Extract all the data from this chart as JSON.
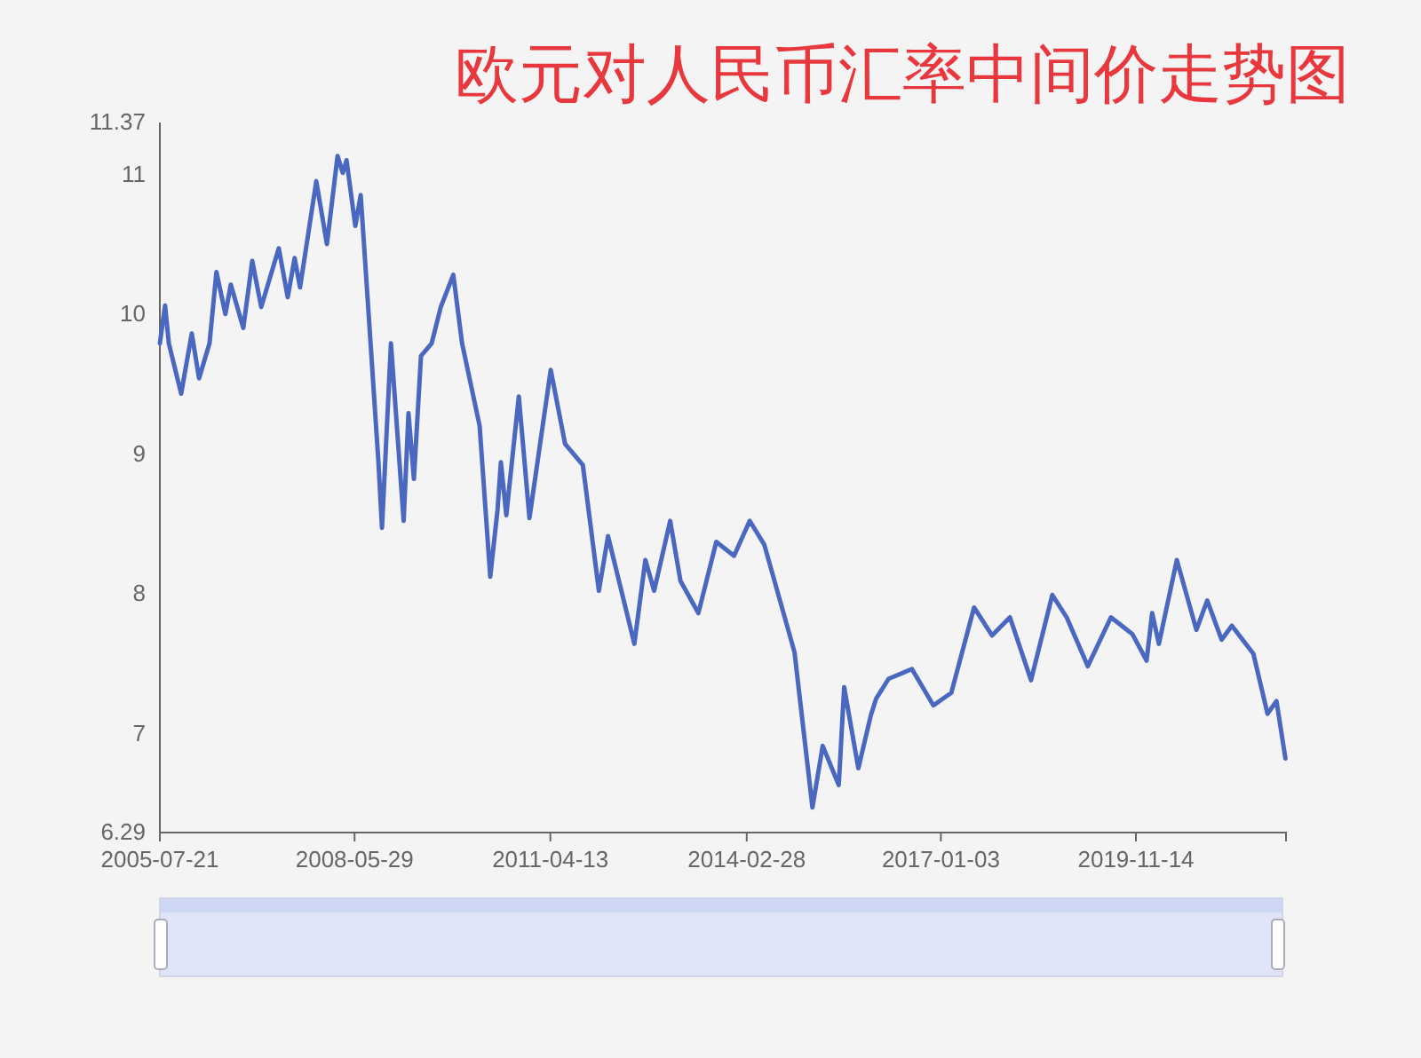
{
  "chart_data": {
    "type": "line",
    "title": "欧元对人民币汇率中间价走势图",
    "x": [
      "2005-07-21",
      "2005-08-18",
      "2005-09-07",
      "2005-11-12",
      "2006-01-08",
      "2006-02-16",
      "2006-04-13",
      "2006-05-20",
      "2006-07-07",
      "2006-08-05",
      "2006-10-11",
      "2006-11-28",
      "2007-01-15",
      "2007-04-19",
      "2007-06-06",
      "2007-07-13",
      "2007-08-11",
      "2007-11-06",
      "2008-01-02",
      "2008-02-28",
      "2008-03-27",
      "2008-04-16",
      "2008-06-02",
      "2008-07-01",
      "2008-08-08",
      "2008-10-04",
      "2008-10-23",
      "2008-12-10",
      "2009-02-16",
      "2009-03-14",
      "2009-04-12",
      "2009-05-20",
      "2009-07-16",
      "2009-09-03",
      "2009-11-09",
      "2009-12-26",
      "2010-03-30",
      "2010-05-26",
      "2010-07-04",
      "2010-07-22",
      "2010-08-20",
      "2010-10-26",
      "2010-12-22",
      "2011-04-15",
      "2011-07-01",
      "2011-10-04",
      "2011-12-29",
      "2012-02-16",
      "2012-07-06",
      "2012-09-03",
      "2012-10-20",
      "2013-01-14",
      "2013-03-10",
      "2013-06-14",
      "2013-09-18",
      "2013-12-22",
      "2014-03-16",
      "2014-06-02",
      "2014-11-11",
      "2015-02-15",
      "2015-04-11",
      "2015-07-06",
      "2015-08-04",
      "2015-10-19",
      "2015-12-25",
      "2016-01-23",
      "2016-03-29",
      "2016-08-01",
      "2016-11-24",
      "2017-02-28",
      "2017-06-30",
      "2017-10-04",
      "2018-01-08",
      "2018-05-01",
      "2018-08-23",
      "2018-11-08",
      "2019-03-01",
      "2019-07-03",
      "2019-10-26",
      "2020-01-10",
      "2020-02-09",
      "2020-03-16",
      "2020-06-20",
      "2020-10-03",
      "2020-11-30",
      "2021-02-15",
      "2021-04-11",
      "2021-08-04",
      "2021-10-19",
      "2021-12-06",
      "2022-01-23"
    ],
    "series": [
      {
        "color": "#4a68c0",
        "values": [
          9.79,
          10.06,
          9.79,
          9.43,
          9.86,
          9.54,
          9.79,
          10.3,
          10.0,
          10.21,
          9.9,
          10.38,
          10.05,
          10.47,
          10.12,
          10.4,
          10.19,
          10.95,
          10.5,
          11.13,
          11.01,
          11.1,
          10.63,
          10.85,
          10.09,
          8.94,
          8.47,
          9.79,
          8.52,
          9.29,
          8.82,
          9.7,
          9.79,
          10.05,
          10.28,
          9.79,
          9.2,
          8.12,
          8.6,
          8.94,
          8.56,
          9.41,
          8.54,
          9.6,
          9.07,
          8.92,
          8.02,
          8.41,
          7.64,
          8.24,
          8.02,
          8.52,
          8.09,
          7.86,
          8.37,
          8.27,
          8.52,
          8.35,
          7.58,
          6.47,
          6.91,
          6.63,
          7.33,
          6.75,
          7.13,
          7.25,
          7.39,
          7.46,
          7.2,
          7.29,
          7.9,
          7.7,
          7.83,
          7.38,
          7.99,
          7.83,
          7.48,
          7.83,
          7.71,
          7.52,
          7.86,
          7.64,
          8.24,
          7.74,
          7.95,
          7.67,
          7.77,
          7.57,
          7.14,
          7.23,
          6.82
        ]
      }
    ],
    "xlim": [
      "2005-07-21",
      "2022-01-26"
    ],
    "xticks": [
      {
        "value": "2005-07-21",
        "label": "2005-07-21"
      },
      {
        "value": "2008-05-29",
        "label": "2008-05-29"
      },
      {
        "value": "2011-04-13",
        "label": "2011-04-13"
      },
      {
        "value": "2014-02-28",
        "label": "2014-02-28"
      },
      {
        "value": "2017-01-03",
        "label": "2017-01-03"
      },
      {
        "value": "2019-11-14",
        "label": "2019-11-14"
      },
      {
        "value": "2022-01-26",
        "label": null
      }
    ],
    "ylim": [
      6.29,
      11.37
    ],
    "yticks": [
      6.29,
      7,
      8,
      9,
      10,
      11,
      11.37
    ],
    "grid": false,
    "marker": "none",
    "line_style": "solid"
  }
}
